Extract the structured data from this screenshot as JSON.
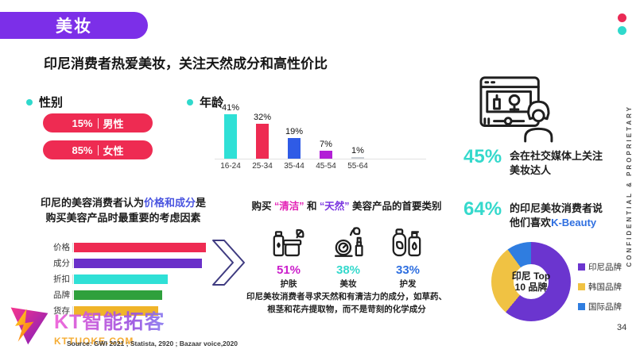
{
  "slide": {
    "badge": "美妆",
    "title": "印尼消费者热爱美妆，关注天然成分和高性价比",
    "page_number": "34",
    "confidential_text": "CONFIDENTIAL & PROPRIETARY",
    "source_text": "Source: GWI 2021 ; Statista, 2920 ; Bazaar voice,2020",
    "accent_colors": {
      "red": "#ea2a55",
      "teal": "#2fd9cc",
      "purple": "#7c2fe8"
    }
  },
  "gender": {
    "heading": "性别",
    "separator": "|",
    "pill_color": "#ee2b52",
    "items": [
      {
        "value": "15%",
        "label": "男性"
      },
      {
        "value": "85%",
        "label": "女性"
      }
    ]
  },
  "age": {
    "heading": "年龄"
  },
  "social_stat": {
    "value": "45%",
    "line1": "会在社交媒体上关注",
    "line2": "美妆达人"
  },
  "kbeauty_stat": {
    "value": "64%",
    "line1": "的印尼美妆消费者说",
    "line2_prefix": "他们喜欢",
    "line2_highlight": "K-Beauty",
    "highlight_color": "#2f6fe0"
  },
  "considerations": {
    "line1_before": "印尼的美容消费者认为",
    "line1_highlight": "价格和成分",
    "line1_after": "是",
    "line2": "购买美容产品时最重要的考虑因素",
    "highlight_color": "#4a55e0"
  },
  "clean_natural": {
    "title_before": "购买",
    "title_q1": "“清洁”",
    "title_mid": "和",
    "title_q2": "“天然”",
    "title_after": "美容产品的首要类别",
    "items": [
      {
        "value": "51%",
        "label": "护肤",
        "color": "#cb1ecb",
        "icon": "skincare-icon"
      },
      {
        "value": "38%",
        "label": "美妆",
        "color": "#35d9cc",
        "icon": "makeup-icon"
      },
      {
        "value": "33%",
        "label": "护发",
        "color": "#2f6fe0",
        "icon": "haircare-icon"
      }
    ],
    "para_line1": "印尼美妆消费者寻求天然和有清洁力的成分，如草药、",
    "para_line2": "根茎和花卉提取物，而不是苛刻的化学成分"
  },
  "brand": {
    "logo_text": "KT智能拓客",
    "logo_url": "KTTUOKE.COM"
  },
  "chart_data": [
    {
      "id": "age_distribution",
      "type": "bar",
      "title": "年龄",
      "categories": [
        "16-24",
        "25-34",
        "35-44",
        "45-54",
        "55-64"
      ],
      "values": [
        41,
        32,
        19,
        7,
        1
      ],
      "value_labels": [
        "41%",
        "32%",
        "19%",
        "7%",
        "1%"
      ],
      "colors": [
        "#2fe0d6",
        "#ee2b52",
        "#2f5be6",
        "#b21fd6",
        "#c9ced4"
      ],
      "unit": "%",
      "ylim": [
        0,
        45
      ],
      "grid": false
    },
    {
      "id": "purchase_considerations",
      "type": "bar",
      "orientation": "horizontal",
      "categories": [
        "价格",
        "成分",
        "折扣",
        "品牌",
        "货存"
      ],
      "values": [
        100,
        97,
        71,
        67,
        64
      ],
      "values_note": "relative bar lengths; numeric labels are not shown in the source slide",
      "colors": [
        "#ee2b52",
        "#6a30c9",
        "#2fe0d6",
        "#2fa03c",
        "#f0b429"
      ],
      "grid": false
    },
    {
      "id": "indonesia_top10_brands",
      "type": "pie",
      "donut": true,
      "center_label_line1": "印尼 Top",
      "center_label_line2": "10 品牌",
      "legend_position": "right",
      "series": [
        {
          "name": "印尼品牌",
          "value": 61,
          "color": "#6b35cf"
        },
        {
          "name": "韩国品牌",
          "value": 29,
          "color": "#f0c243"
        },
        {
          "name": "国际品牌",
          "value": 10,
          "color": "#2f7de0"
        }
      ]
    }
  ]
}
